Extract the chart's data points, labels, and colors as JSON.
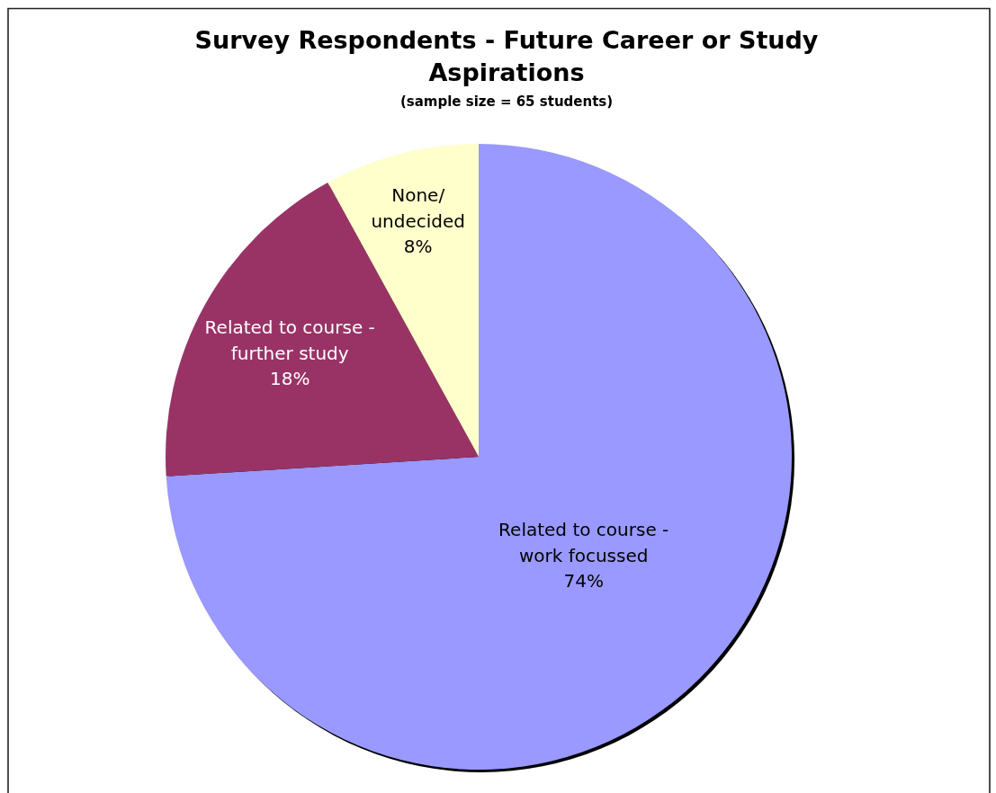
{
  "chart_data": {
    "type": "pie",
    "title": "Survey Respondents - Future Career or Study Aspirations",
    "subtitle": "(sample size = 65 students)",
    "categories": [
      "Related to course - work focussed",
      "Related to course - further study",
      "None/ undecided"
    ],
    "values": [
      74,
      18,
      8
    ],
    "colors": [
      "#9999ff",
      "#993366",
      "#ffffcc"
    ],
    "value_labels": [
      "74%",
      "18%",
      "8%"
    ]
  }
}
